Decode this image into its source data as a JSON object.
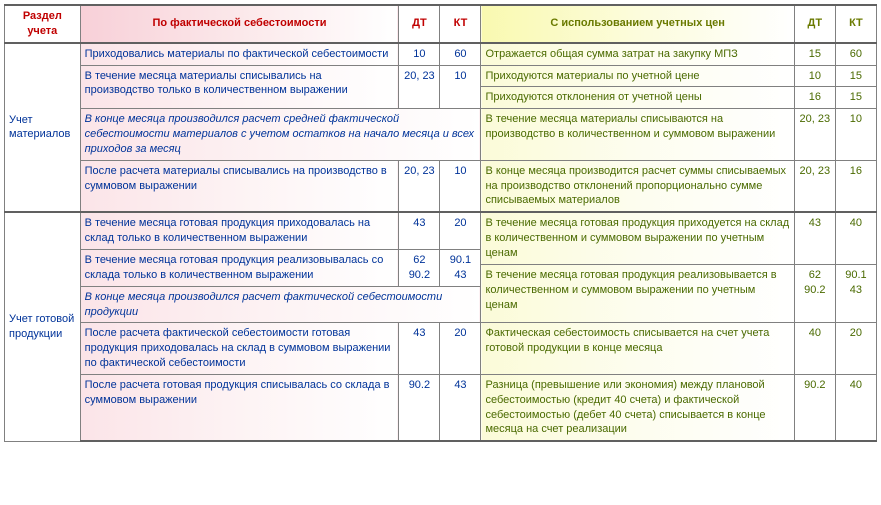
{
  "headers": {
    "section": "Раздел учета",
    "left": "По фактической себестоимости",
    "right": "С использованием учетных цен",
    "dt": "ДТ",
    "kt": "КТ"
  },
  "section1": {
    "label": "Учет материалов",
    "left": [
      {
        "text": "Приходовались материалы по фактической себестоимости",
        "dt": "10",
        "kt": "60"
      },
      {
        "text": "В течение месяца материалы списывались на производство только в количественном выражении",
        "dt": "20, 23",
        "kt": "10"
      },
      {
        "text": "В конце месяца производился расчет средней фактической себестоимости материалов с учетом остатков на начало месяца и всех приходов за месяц",
        "italic": true
      },
      {
        "text": "После расчета материалы списывались на производство в суммовом выражении",
        "dt": "20, 23",
        "kt": "10"
      }
    ],
    "right": [
      {
        "text": "Отражается общая сумма затрат на закупку МПЗ",
        "dt": "15",
        "kt": "60"
      },
      {
        "text": "Приходуются материалы по учетной цене",
        "dt": "10",
        "kt": "15"
      },
      {
        "text": "Приходуются отклонения от учетной цены",
        "dt": "16",
        "kt": "15"
      },
      {
        "text": "В течение месяца материалы списываются на производство в количественном и суммовом выражении",
        "dt": "20, 23",
        "kt": "10"
      },
      {
        "text": "В конце месяца производится расчет суммы списываемых на производство отклонений пропорционально сумме списываемых материалов",
        "dt": "20, 23",
        "kt": "16"
      }
    ]
  },
  "section2": {
    "label": "Учет готовой продукции",
    "left": [
      {
        "text": "В течение месяца готовая продукция приходовалась на склад только в количественном выражении",
        "dt": "43",
        "kt": "20"
      },
      {
        "text": "В течение месяца готовая продукция реализовывалась со склада только в количественном выражении",
        "dt": "62\n90.2",
        "kt": "90.1\n43"
      },
      {
        "text": "В конце месяца производился расчет фактической себестоимости продукции",
        "italic": true
      },
      {
        "text": "После расчета фактической себестоимости готовая продукция приходовалась на склад в суммовом выражении по фактической себестоимости",
        "dt": "43",
        "kt": "20"
      },
      {
        "text": "После расчета готовая продукция списывалась со склада в суммовом выражении",
        "dt": "90.2",
        "kt": "43"
      }
    ],
    "right": [
      {
        "text": "В течение месяца готовая продукция приходуется на склад в количественном и суммовом выражении по учетным ценам",
        "dt": "43",
        "kt": "40"
      },
      {
        "text": "В течение месяца готовая продукция реализовывается в количественном и суммовом выражении по учетным ценам",
        "dt": "62\n90.2",
        "kt": "90.1\n43"
      },
      {
        "text": "Фактическая себестоимость списывается на счет учета готовой продукции в конце месяца",
        "dt": "40",
        "kt": "20"
      },
      {
        "text": "Разница (превышение или экономия) между плановой себестоимостью (кредит 40 счета) и фактической себестоимостью (дебет 40 счета) списывается в конце месяца на счет реализации",
        "dt": "90.2",
        "kt": "40"
      }
    ]
  }
}
